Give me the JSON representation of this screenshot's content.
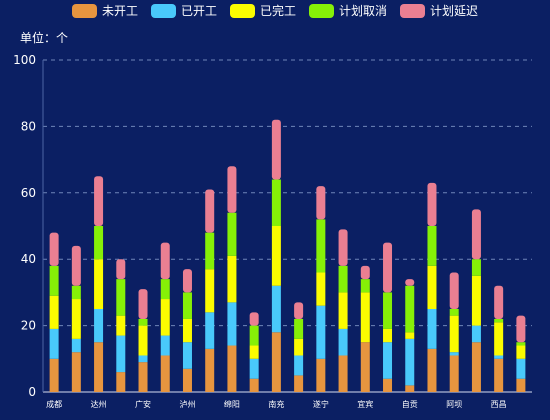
{
  "chart_data": {
    "type": "bar",
    "stacked": true,
    "categories": [
      "成都",
      "",
      "达州",
      "",
      "广安",
      "",
      "泸州",
      "",
      "绵阳",
      "",
      "南充",
      "",
      "遂宁",
      "",
      "宜宾",
      "",
      "自贡",
      "",
      "阿坝",
      "",
      "西昌",
      ""
    ],
    "series": [
      {
        "name": "未开工",
        "color": "#e7953f",
        "values": [
          10,
          12,
          15,
          6,
          9,
          11,
          7,
          13,
          14,
          4,
          18,
          5,
          10,
          11,
          15,
          4,
          2,
          13,
          11,
          15,
          10,
          4
        ]
      },
      {
        "name": "已开工",
        "color": "#49c9fb",
        "values": [
          9,
          4,
          10,
          11,
          2,
          6,
          8,
          11,
          13,
          6,
          14,
          6,
          16,
          8,
          0,
          11,
          14,
          12,
          1,
          5,
          1,
          6
        ]
      },
      {
        "name": "已完工",
        "color": "#fbfc00",
        "values": [
          10,
          12,
          15,
          6,
          9,
          11,
          7,
          13,
          14,
          4,
          18,
          5,
          10,
          11,
          15,
          4,
          2,
          13,
          11,
          15,
          10,
          4
        ]
      },
      {
        "name": "计划取消",
        "color": "#86f007",
        "values": [
          9,
          4,
          10,
          11,
          2,
          6,
          8,
          11,
          13,
          6,
          14,
          6,
          16,
          8,
          4,
          11,
          14,
          12,
          2,
          5,
          1,
          1
        ]
      },
      {
        "name": "计划延迟",
        "color": "#ea7f92",
        "values": [
          10,
          12,
          15,
          6,
          9,
          11,
          7,
          13,
          14,
          4,
          18,
          5,
          10,
          11,
          4,
          15,
          2,
          13,
          11,
          15,
          10,
          8
        ]
      }
    ],
    "ylim": [
      0,
      100
    ],
    "yticks": [
      0,
      20,
      40,
      60,
      80,
      100
    ],
    "unit_label": "单位：个",
    "grid": true,
    "legend_position": "top"
  }
}
